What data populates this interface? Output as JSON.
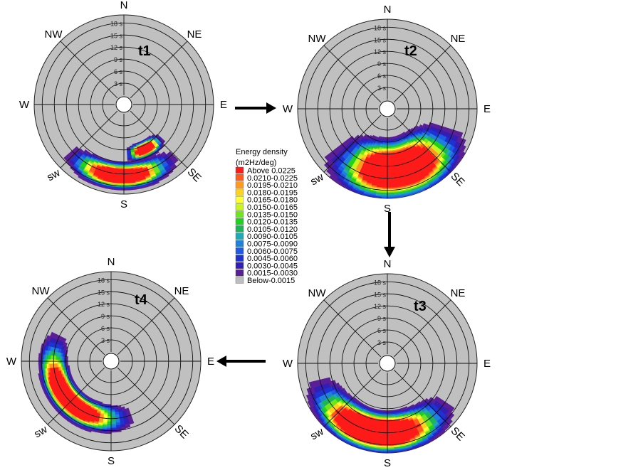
{
  "chart_data": [
    {
      "type": "polar-spectrum",
      "panel_label": "t1",
      "radial_ticks": [
        "3 s",
        "6 s",
        "9 s",
        "12 s",
        "15 s",
        "18 s"
      ],
      "directions": [
        "N",
        "NE",
        "E",
        "SE",
        "S",
        "sw",
        "W",
        "NW"
      ],
      "blobs": [
        {
          "dir_deg": 155,
          "period": 10,
          "dir_half_width": 14,
          "period_half_width": 1.4
        },
        {
          "dir_deg": 183,
          "period": 15.5,
          "dir_half_width": 28,
          "period_half_width": 2.2
        }
      ],
      "colormap_scale": 0.7
    },
    {
      "type": "polar-spectrum",
      "panel_label": "t2",
      "radial_ticks": [
        "3 s",
        "6 s",
        "9 s",
        "12 s",
        "15 s",
        "18 s"
      ],
      "directions": [
        "N",
        "NE",
        "E",
        "SE",
        "S",
        "sw",
        "W",
        "NW"
      ],
      "blobs": [
        {
          "dir_deg": 170,
          "period": 13,
          "dir_half_width": 38,
          "period_half_width": 5.0
        }
      ],
      "colormap_scale": 0.62
    },
    {
      "type": "polar-spectrum",
      "panel_label": "t3",
      "radial_ticks": [
        "3 s",
        "6 s",
        "9 s",
        "12 s",
        "15 s",
        "18 s"
      ],
      "directions": [
        "N",
        "NE",
        "E",
        "SE",
        "S",
        "sw",
        "W",
        "NW"
      ],
      "blobs": [
        {
          "dir_deg": 190,
          "period": 15,
          "dir_half_width": 40,
          "period_half_width": 3.4
        }
      ],
      "colormap_scale": 0.6
    },
    {
      "type": "polar-spectrum",
      "panel_label": "t4",
      "radial_ticks": [
        "3 s",
        "6 s",
        "9 s",
        "12 s",
        "15 s",
        "18 s"
      ],
      "directions": [
        "N",
        "NE",
        "E",
        "SE",
        "S",
        "sw",
        "W",
        "NW"
      ],
      "blobs": [
        {
          "dir_deg": 228,
          "period": 12,
          "dir_half_width": 42,
          "period_half_width": 2.4
        }
      ],
      "colormap_scale": 0.65
    }
  ],
  "legend": {
    "title_line1": "Energy density",
    "title_line2": "(m2Hz/deg)",
    "entries": [
      {
        "label": "Above  0.0225",
        "color": "#ff1a1a"
      },
      {
        "label": "0.0210-0.0225",
        "color": "#ff5a1e"
      },
      {
        "label": "0.0195-0.0210",
        "color": "#ff9a1e"
      },
      {
        "label": "0.0180-0.0195",
        "color": "#ffd21e"
      },
      {
        "label": "0.0165-0.0180",
        "color": "#ffff33"
      },
      {
        "label": "0.0150-0.0165",
        "color": "#c8f51e"
      },
      {
        "label": "0.0135-0.0150",
        "color": "#6ee61e"
      },
      {
        "label": "0.0120-0.0135",
        "color": "#1ed21e"
      },
      {
        "label": "0.0105-0.0120",
        "color": "#1eb45a"
      },
      {
        "label": "0.0090-0.0105",
        "color": "#1eaab4"
      },
      {
        "label": "0.0075-0.0090",
        "color": "#1e82dc"
      },
      {
        "label": "0.0060-0.0075",
        "color": "#1e5ae6"
      },
      {
        "label": "0.0045-0.0060",
        "color": "#1e32d2"
      },
      {
        "label": "0.0030-0.0045",
        "color": "#321eb4"
      },
      {
        "label": "0.0015-0.0030",
        "color": "#5a1e96"
      },
      {
        "label": "Below-0.0015",
        "color": "#bdbdbd"
      }
    ]
  },
  "colors": {
    "disk": "#c0c0c0",
    "grid": "#111111",
    "arrow": "#000000"
  }
}
